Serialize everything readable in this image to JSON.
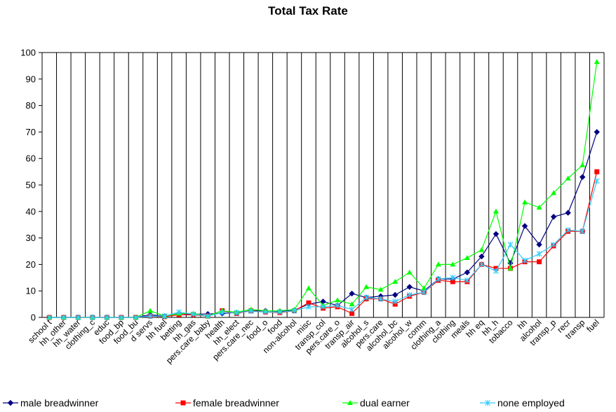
{
  "chart_data": {
    "type": "line",
    "title": "Total Tax Rate",
    "xlabel": "",
    "ylabel": "",
    "ylim": [
      0,
      100
    ],
    "y_ticks": [
      0,
      10,
      20,
      30,
      40,
      50,
      60,
      70,
      80,
      90,
      100
    ],
    "grid": "vertical gridlines between categories",
    "legend_position": "bottom",
    "categories": [
      "school t",
      "hh_other",
      "hh_water",
      "clothing_c",
      "educ",
      "food_bp",
      "food_bu",
      "d servs",
      "hh fuel",
      "betting",
      "hh_gas",
      "pers.care_baby",
      "health",
      "hh_elect",
      "pers.care_nec",
      "food_o",
      "food",
      "non-alcohol",
      "misc",
      "transp_col",
      "pers.care_o",
      "transp_air",
      "alcohol_s",
      "pers.care",
      "alcohol_bc",
      "alcohol_w",
      "comm",
      "clothing_a",
      "clothing",
      "meals",
      "hh eq",
      "hh_h",
      "tobacco",
      "hh",
      "alcohol",
      "transp_p",
      "recr",
      "transp",
      "fuel"
    ],
    "series": [
      {
        "name": "male breadwinner",
        "color": "#000080",
        "marker": "diamond",
        "values": [
          0,
          0,
          0,
          0,
          0,
          0,
          0,
          1,
          0.5,
          1.5,
          1.2,
          1.3,
          1.5,
          1.8,
          2.5,
          2.5,
          2.3,
          2.7,
          5,
          6,
          4.5,
          9,
          7.5,
          8,
          8.5,
          11.5,
          10,
          14.5,
          14.5,
          17,
          23,
          31.5,
          20.5,
          34.5,
          27.5,
          38,
          39.5,
          53,
          70
        ]
      },
      {
        "name": "female breadwinner",
        "color": "#FF0000",
        "marker": "square",
        "values": [
          0,
          0,
          0,
          0,
          0,
          0,
          0,
          0.5,
          0.3,
          1,
          1,
          0.5,
          2.5,
          1.5,
          2.5,
          2,
          1.8,
          2.5,
          5.5,
          3.5,
          4,
          1.5,
          7,
          7,
          5,
          8,
          9.5,
          14,
          13.5,
          13.5,
          20,
          18.5,
          18.5,
          21,
          21,
          27,
          32.5,
          32.5,
          55
        ]
      },
      {
        "name": "dual earner",
        "color": "#00FF00",
        "marker": "triangle",
        "values": [
          0,
          0,
          0,
          0,
          0,
          0,
          0,
          2.5,
          0.5,
          1.5,
          1.5,
          0.5,
          2.5,
          2,
          3,
          2.5,
          2.5,
          3,
          11,
          4.5,
          6.5,
          5,
          11.5,
          10.5,
          13.5,
          17,
          11,
          20,
          20,
          22.5,
          25.5,
          40,
          18.5,
          43.5,
          41.5,
          47,
          52.5,
          57.5,
          96.5
        ]
      },
      {
        "name": "none employed",
        "color": "#33CCFF",
        "marker": "x",
        "values": [
          0,
          0,
          0,
          0,
          0,
          0,
          0,
          0.5,
          0.5,
          2,
          1.2,
          0.5,
          1.8,
          1.8,
          2.3,
          2,
          2,
          2.5,
          4,
          4,
          4.5,
          3,
          7.5,
          7,
          6,
          8.5,
          9.5,
          14.5,
          15,
          14,
          20,
          17.5,
          27.5,
          21.5,
          24,
          27.5,
          33,
          32.5,
          51.5
        ]
      }
    ]
  }
}
